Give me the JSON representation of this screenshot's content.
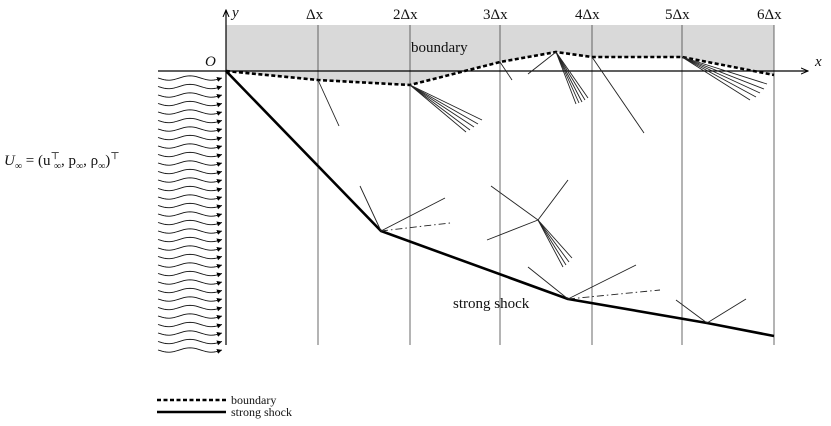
{
  "labels": {
    "y_axis": "y",
    "x_axis": "x",
    "origin": "O",
    "region_boundary": "boundary",
    "shock_label": "strong shock",
    "inflow_prefix": "U",
    "inflow_sub": "∞",
    "inflow_eq": " = (u",
    "inflow_sup_T": "⊤",
    "inflow_sub2": "∞",
    "inflow_mid": ", p",
    "inflow_sub3": "∞",
    "inflow_mid2": ", ρ",
    "inflow_sub4": "∞",
    "inflow_end": ")",
    "inflow_sup_T2": "⊤"
  },
  "ticks": [
    "Δx",
    "2Δx",
    "3Δx",
    "4Δx",
    "5Δx",
    "6Δx"
  ],
  "legend": [
    {
      "label": "boundary",
      "style": "dashed"
    },
    {
      "label": "strong shock",
      "style": "solid"
    }
  ],
  "colors": {
    "boundary_fill": "#d9d9d9",
    "ink": "#000000"
  }
}
